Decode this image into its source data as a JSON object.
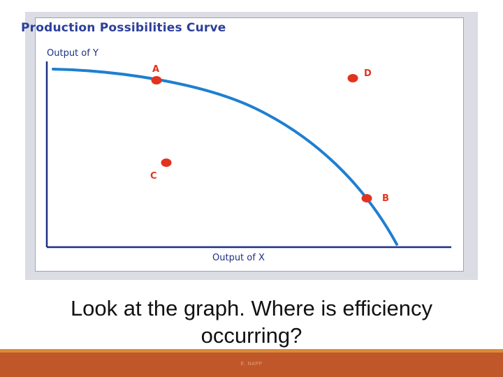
{
  "figure": {
    "title": "Production Possibilities Curve",
    "y_axis_label": "Output of Y",
    "x_axis_label": "Output of X",
    "curve_color": "#1f7fd0",
    "axis_color": "#1d2f86",
    "point_color": "#e2331f",
    "points": [
      {
        "label": "A"
      },
      {
        "label": "D"
      },
      {
        "label": "C"
      },
      {
        "label": "B"
      }
    ]
  },
  "slide": {
    "question_line1": "Look at the graph.  Where is efficiency",
    "question_line2": "occurring?",
    "footer_credit": "E. NAPP",
    "footer_color": "#c0572b"
  }
}
